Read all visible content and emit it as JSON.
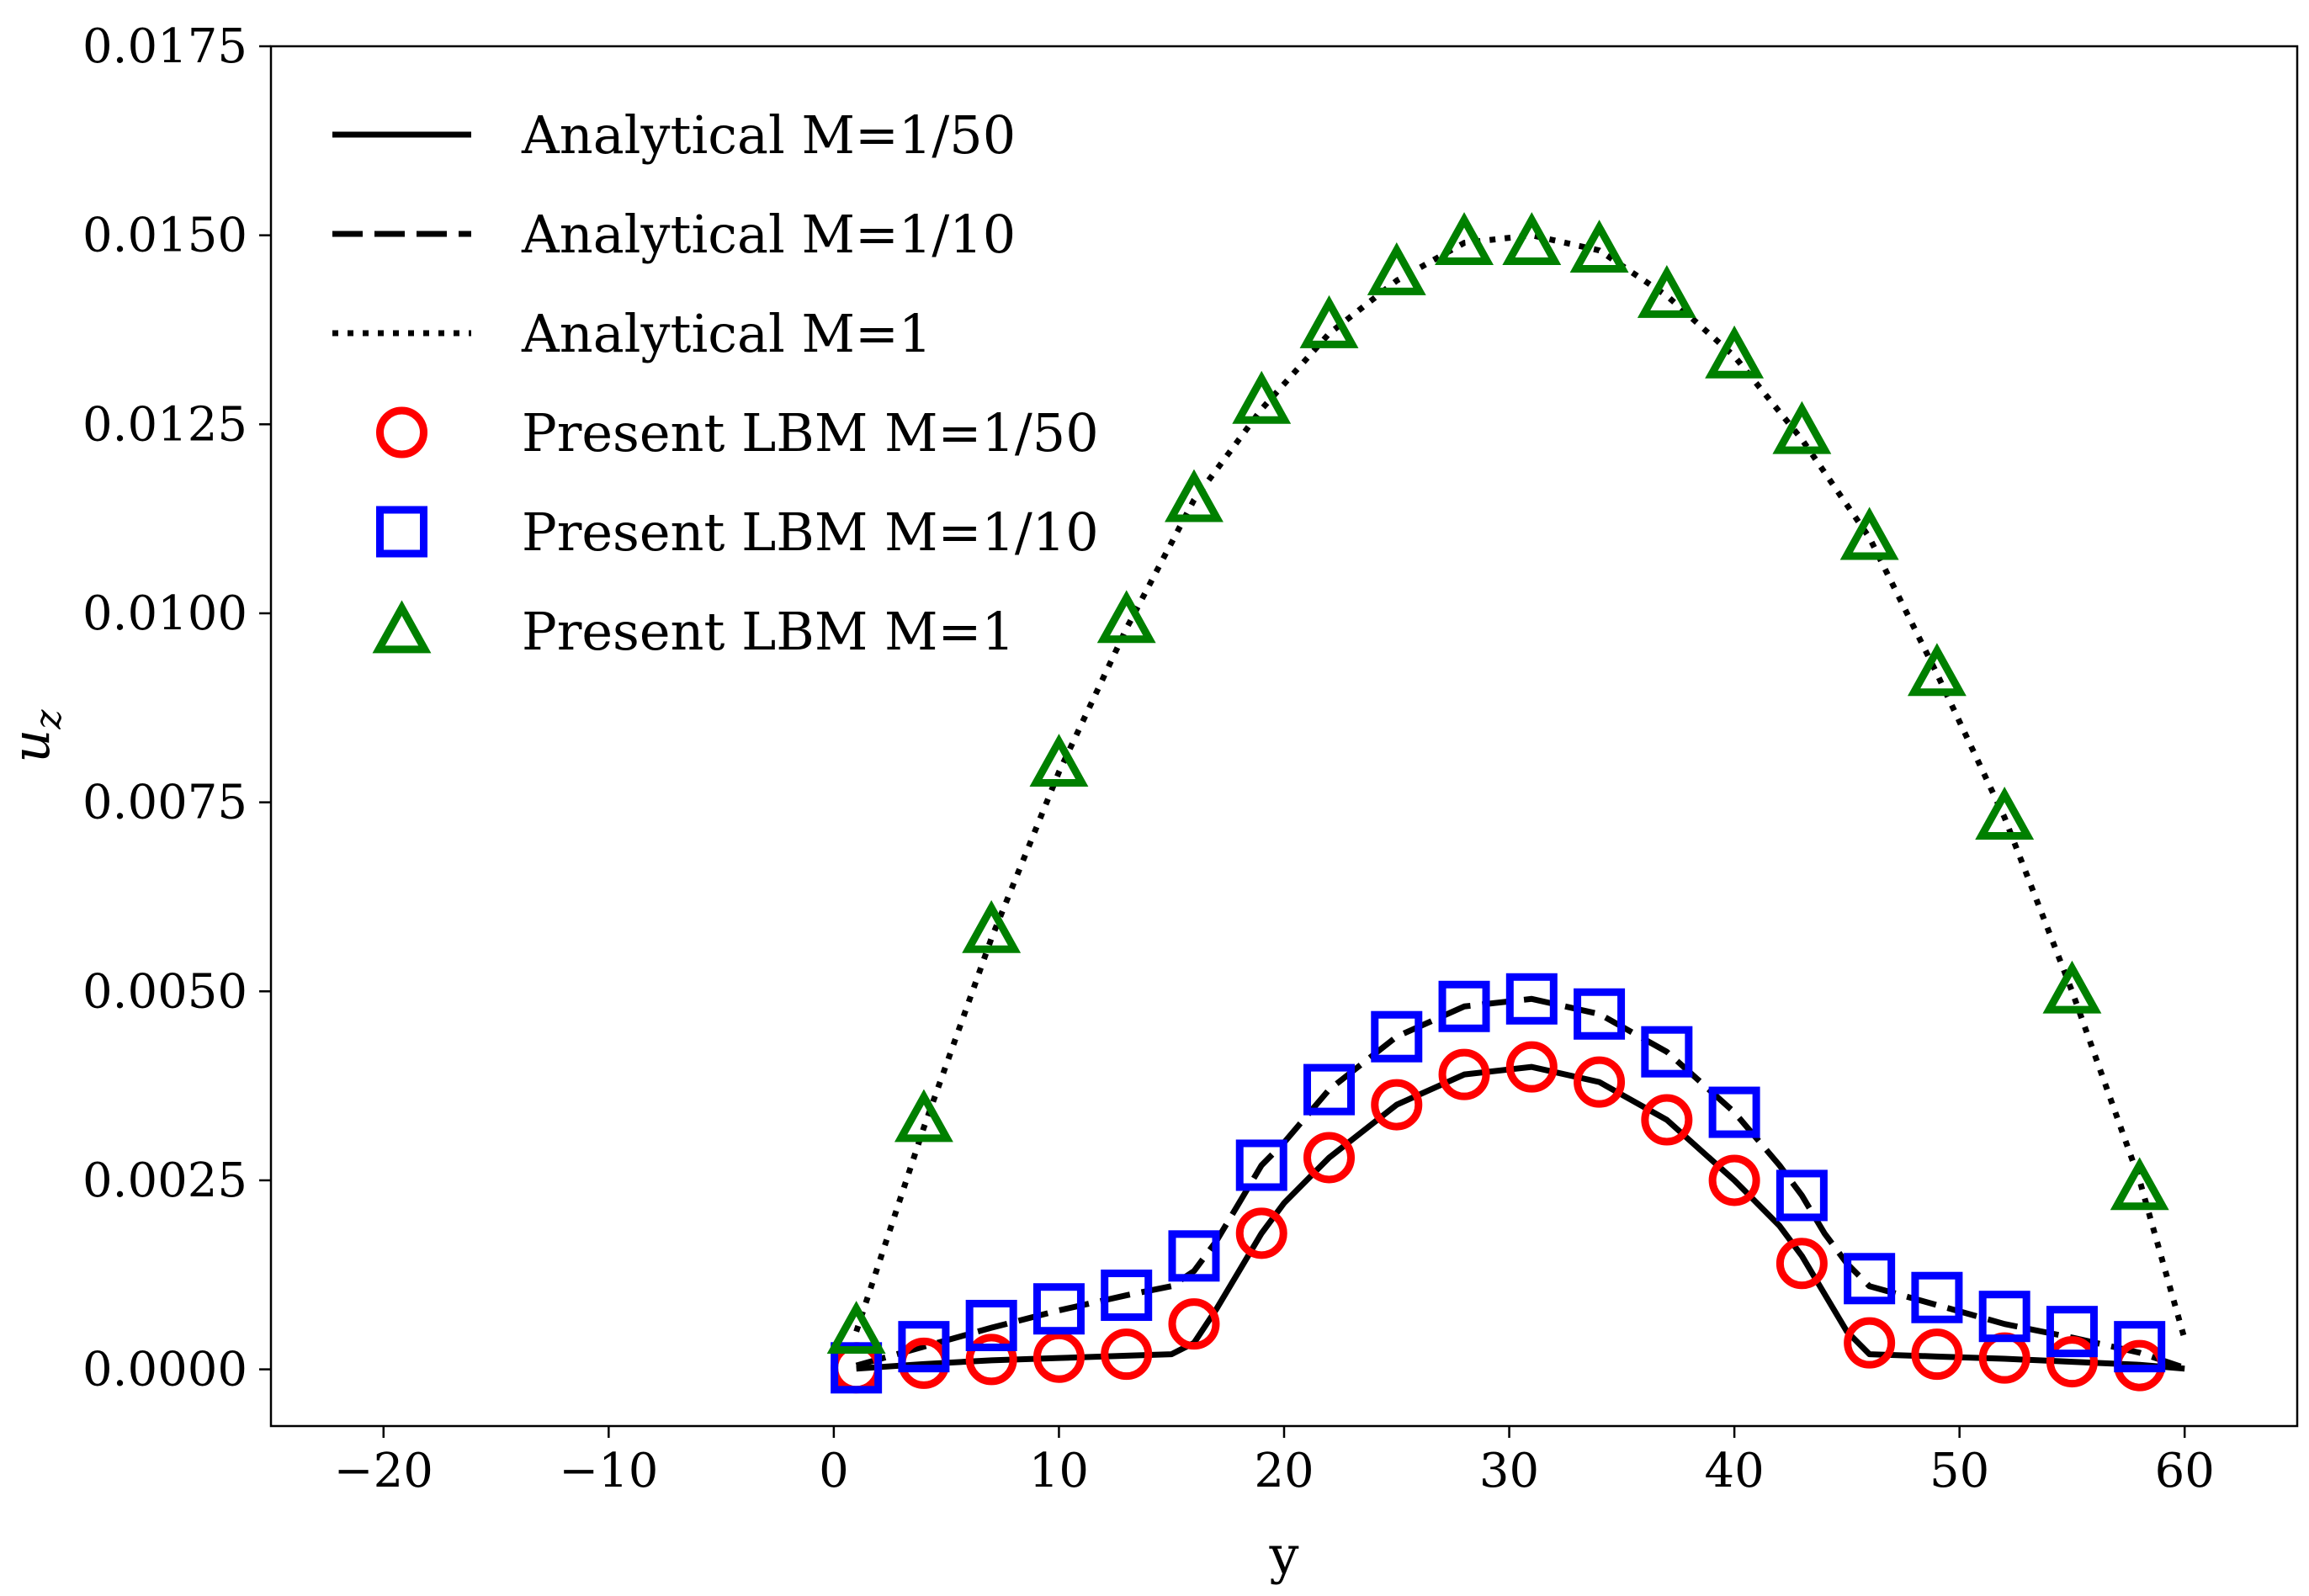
{
  "chart_data": {
    "type": "line",
    "title": "",
    "xlabel": "y",
    "ylabel_base": "u",
    "ylabel_sub": "z",
    "xlim": [
      -25,
      65
    ],
    "ylim": [
      -0.00075,
      0.0175
    ],
    "xticks": [
      -20,
      -10,
      0,
      10,
      20,
      30,
      40,
      50,
      60
    ],
    "xtick_labels": [
      "−20",
      "−10",
      "0",
      "10",
      "20",
      "30",
      "40",
      "50",
      "60"
    ],
    "yticks": [
      0,
      0.0025,
      0.005,
      0.0075,
      0.01,
      0.0125,
      0.015,
      0.0175
    ],
    "ytick_labels": [
      "0.0000",
      "0.0025",
      "0.0050",
      "0.0075",
      "0.0100",
      "0.0125",
      "0.0150",
      "0.0175"
    ],
    "legend_position": "top-left",
    "series": [
      {
        "name": "Analytical M=1/50",
        "kind": "line",
        "style": "solid",
        "color": "#000000",
        "x": [
          1,
          4,
          7,
          10,
          13,
          15,
          16,
          17,
          18,
          19,
          20,
          22,
          25,
          28,
          31,
          34,
          37,
          40,
          42,
          43,
          44,
          45,
          46,
          49,
          52,
          55,
          58,
          60
        ],
        "y": [
          1e-05,
          7e-05,
          0.00012,
          0.00015,
          0.00018,
          0.0002,
          0.00035,
          0.0008,
          0.0013,
          0.0018,
          0.0022,
          0.0028,
          0.0035,
          0.0039,
          0.004,
          0.0038,
          0.0033,
          0.0025,
          0.0019,
          0.0015,
          0.001,
          0.0005,
          0.0002,
          0.00017,
          0.00014,
          0.0001,
          6e-05,
          1e-05
        ]
      },
      {
        "name": "Analytical M=1/10",
        "kind": "line",
        "style": "dashed",
        "color": "#000000",
        "x": [
          1,
          4,
          7,
          10,
          13,
          15,
          16,
          17,
          18,
          19,
          20,
          22,
          25,
          28,
          31,
          34,
          37,
          40,
          42,
          43,
          44,
          45,
          46,
          49,
          52,
          55,
          58,
          60
        ],
        "y": [
          5e-05,
          0.0003,
          0.00055,
          0.00078,
          0.00098,
          0.0011,
          0.0013,
          0.0017,
          0.0022,
          0.0027,
          0.003,
          0.0037,
          0.0044,
          0.0048,
          0.0049,
          0.0047,
          0.0042,
          0.0034,
          0.0027,
          0.0023,
          0.0018,
          0.0014,
          0.0011,
          0.00085,
          0.0006,
          0.00042,
          0.00022,
          2e-05
        ]
      },
      {
        "name": "Analytical M=1",
        "kind": "line",
        "style": "dotted",
        "color": "#000000",
        "x": [
          1,
          4,
          7,
          10,
          13,
          16,
          19,
          22,
          25,
          28,
          31,
          34,
          37,
          40,
          43,
          46,
          49,
          52,
          55,
          58,
          60
        ],
        "y": [
          0.0005,
          0.0032,
          0.0057,
          0.0079,
          0.0098,
          0.0115,
          0.0127,
          0.0137,
          0.0144,
          0.0149,
          0.015,
          0.0148,
          0.0142,
          0.0134,
          0.0123,
          0.011,
          0.0092,
          0.0073,
          0.005,
          0.0025,
          0.0004
        ]
      },
      {
        "name": "Present LBM M=1/50",
        "kind": "marker",
        "marker": "circle",
        "color": "#ff0000",
        "x": [
          1,
          4,
          7,
          10,
          13,
          16,
          19,
          22,
          25,
          28,
          31,
          34,
          37,
          40,
          43,
          46,
          49,
          52,
          55,
          58
        ],
        "y": [
          2e-05,
          8e-05,
          0.00013,
          0.00016,
          0.0002,
          0.0006,
          0.0018,
          0.0028,
          0.0035,
          0.0039,
          0.004,
          0.0038,
          0.0033,
          0.0025,
          0.0014,
          0.00035,
          0.0002,
          0.00015,
          0.0001,
          5e-05
        ]
      },
      {
        "name": "Present LBM M=1/10",
        "kind": "marker",
        "marker": "square",
        "color": "#0000ff",
        "x": [
          1,
          4,
          7,
          10,
          13,
          16,
          19,
          22,
          25,
          28,
          31,
          34,
          37,
          40,
          43,
          46,
          49,
          52,
          55,
          58
        ],
        "y": [
          2e-05,
          0.0003,
          0.00058,
          0.0008,
          0.00098,
          0.0015,
          0.0027,
          0.0037,
          0.0044,
          0.0048,
          0.0049,
          0.0047,
          0.0042,
          0.0034,
          0.0023,
          0.0012,
          0.00095,
          0.0007,
          0.0005,
          0.0003
        ]
      },
      {
        "name": "Present LBM M=1",
        "kind": "marker",
        "marker": "triangle",
        "color": "#008000",
        "x": [
          1,
          4,
          7,
          10,
          13,
          16,
          19,
          22,
          25,
          28,
          31,
          34,
          37,
          40,
          43,
          46,
          49,
          52,
          55,
          58
        ],
        "y": [
          0.0005,
          0.0033,
          0.0058,
          0.008,
          0.0099,
          0.0115,
          0.0128,
          0.0138,
          0.0145,
          0.0149,
          0.0149,
          0.0148,
          0.0142,
          0.0134,
          0.0124,
          0.011,
          0.0092,
          0.0073,
          0.005,
          0.0024
        ]
      }
    ]
  }
}
